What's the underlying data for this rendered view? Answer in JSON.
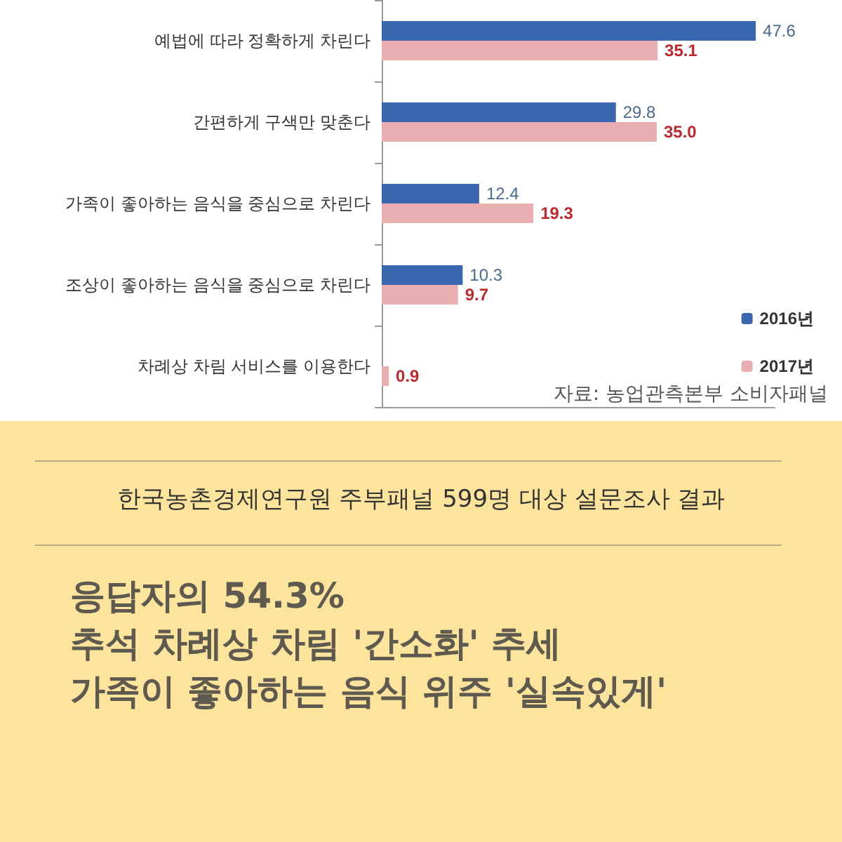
{
  "chart_data": {
    "type": "bar",
    "orientation": "horizontal",
    "categories": [
      "예법에 따라 정확하게 차린다",
      "간편하게 구색만 맞춘다",
      "가족이 좋아하는 음식을 중심으로 차린다",
      "조상이 좋아하는 음식을 중심으로 차린다",
      "차례상 차림 서비스를 이용한다"
    ],
    "series": [
      {
        "name": "2016년",
        "color": "#3b67b0",
        "values": [
          47.6,
          29.8,
          12.4,
          10.3,
          null
        ],
        "value_labels": [
          "47.6",
          "29.8",
          "12.4",
          "10.3",
          null
        ]
      },
      {
        "name": "2017년",
        "color": "#e8aeb0",
        "values": [
          35.1,
          35.0,
          19.3,
          9.7,
          0.9
        ],
        "value_labels": [
          "35.1",
          "35.0",
          "19.3",
          "9.7",
          "0.9"
        ]
      }
    ],
    "relative": false,
    "legend": "bottom right",
    "grid": false,
    "annotations": [
      "자료: 농업관측본부 소비자패널",
      "한국농촌경제연구원 주부패널 599명 대상 설문조사 결과",
      "응답자의 54.3%",
      "추석 차례상 차림 '간소화' 추세",
      "가족이 좋아하는 음식 위주 '실속있게'"
    ]
  }
}
